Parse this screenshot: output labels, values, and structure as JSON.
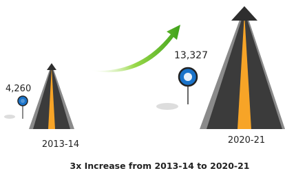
{
  "items": [
    {
      "period": "2013-14",
      "value": "4,260"
    },
    {
      "period": "2020-21",
      "value": "13,327"
    }
  ],
  "caption": "3x Increase from 2013-14 to 2020-21"
}
